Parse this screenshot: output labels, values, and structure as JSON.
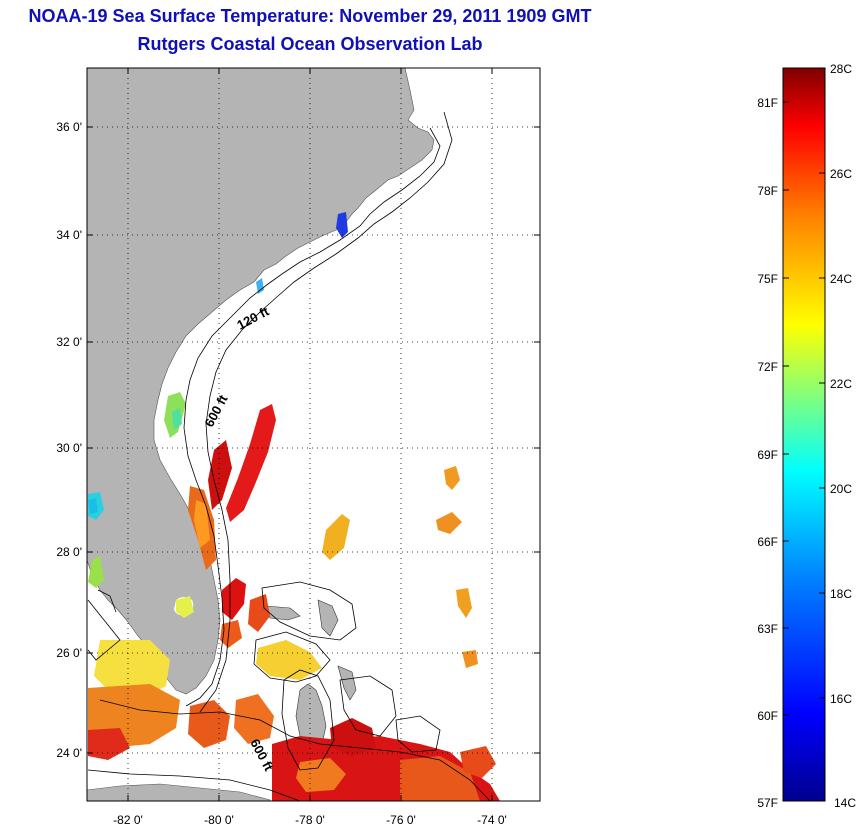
{
  "title": {
    "line1": "NOAA-19 Sea Surface Temperature:  November 29, 2011 1909 GMT",
    "line2": "Rutgers Coastal Ocean Observation Lab"
  },
  "map": {
    "lat_labels": [
      "36 0'",
      "34 0'",
      "32 0'",
      "30 0'",
      "28 0'",
      "26 0'",
      "24 0'"
    ],
    "lon_labels": [
      "-82 0'",
      "-80 0'",
      "-78 0'",
      "-76 0'",
      "-74 0'"
    ],
    "contours": {
      "c120": "120 ft",
      "c600a": "600 ft",
      "c600b": "600 ft"
    },
    "land_color": "#b4b4b4"
  },
  "colorbar": {
    "celsius_labels": [
      "28C",
      "26C",
      "24C",
      "22C",
      "20C",
      "18C",
      "16C",
      "14C"
    ],
    "fahrenheit_labels": [
      "81F",
      "78F",
      "75F",
      "72F",
      "69F",
      "66F",
      "63F",
      "60F",
      "57F"
    ],
    "colors": [
      "#7f0000",
      "#ff0000",
      "#ff7f00",
      "#ffff00",
      "#7fff7f",
      "#00ffff",
      "#007fff",
      "#0000ff",
      "#00008f"
    ]
  }
}
